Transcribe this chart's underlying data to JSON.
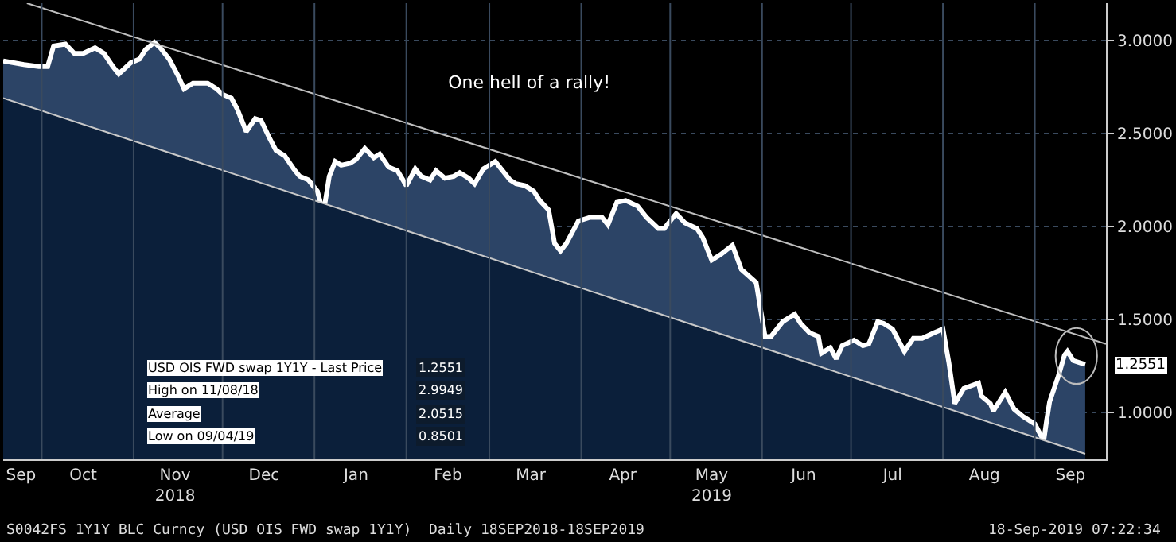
{
  "chart_data": {
    "type": "area",
    "title": "One hell of a rally!",
    "x": [
      "2018-09-18",
      "2018-09-25",
      "2018-09-30",
      "2018-10-03",
      "2018-10-05",
      "2018-10-09",
      "2018-10-12",
      "2018-10-15",
      "2018-10-19",
      "2018-10-22",
      "2018-10-25",
      "2018-10-27",
      "2018-10-31",
      "2018-11-03",
      "2018-11-05",
      "2018-11-08",
      "2018-11-10",
      "2018-11-13",
      "2018-11-16",
      "2018-11-18",
      "2018-11-21",
      "2018-11-26",
      "2018-11-29",
      "2018-12-01",
      "2018-12-04",
      "2018-12-06",
      "2018-12-09",
      "2018-12-12",
      "2018-12-14",
      "2018-12-17",
      "2018-12-19",
      "2018-12-22",
      "2018-12-25",
      "2018-12-27",
      "2018-12-30",
      "2019-01-02",
      "2019-01-04",
      "2019-01-06",
      "2019-01-08",
      "2019-01-10",
      "2019-01-13",
      "2019-01-15",
      "2019-01-18",
      "2019-01-21",
      "2019-01-23",
      "2019-01-26",
      "2019-01-29",
      "2019-02-01",
      "2019-02-04",
      "2019-02-06",
      "2019-02-09",
      "2019-02-11",
      "2019-02-14",
      "2019-02-17",
      "2019-02-19",
      "2019-02-22",
      "2019-02-24",
      "2019-02-27",
      "2019-03-03",
      "2019-03-05",
      "2019-03-08",
      "2019-03-10",
      "2019-03-13",
      "2019-03-16",
      "2019-03-18",
      "2019-03-21",
      "2019-03-23",
      "2019-03-25",
      "2019-03-27",
      "2019-03-31",
      "2019-04-04",
      "2019-04-08",
      "2019-04-10",
      "2019-04-13",
      "2019-04-16",
      "2019-04-20",
      "2019-04-23",
      "2019-04-27",
      "2019-04-29",
      "2019-05-03",
      "2019-05-06",
      "2019-05-10",
      "2019-05-12",
      "2019-05-15",
      "2019-05-18",
      "2019-05-22",
      "2019-05-25",
      "2019-05-30",
      "2019-06-02",
      "2019-06-04",
      "2019-06-08",
      "2019-06-12",
      "2019-06-14",
      "2019-06-17",
      "2019-06-20",
      "2019-06-21",
      "2019-06-24",
      "2019-06-26",
      "2019-06-28",
      "2019-07-02",
      "2019-07-05",
      "2019-07-07",
      "2019-07-10",
      "2019-07-12",
      "2019-07-15",
      "2019-07-19",
      "2019-07-22",
      "2019-07-25",
      "2019-07-29",
      "2019-08-01",
      "2019-08-03",
      "2019-08-05",
      "2019-08-08",
      "2019-08-13",
      "2019-08-14",
      "2019-08-17",
      "2019-08-18",
      "2019-08-22",
      "2019-08-25",
      "2019-08-28",
      "2019-09-01",
      "2019-09-04",
      "2019-09-05",
      "2019-09-06",
      "2019-09-09",
      "2019-09-11",
      "2019-09-12",
      "2019-09-14",
      "2019-09-18"
    ],
    "series": [
      {
        "color": "#2c4466",
        "values": [
          2.89,
          2.87,
          2.86,
          2.86,
          2.97,
          2.98,
          2.93,
          2.93,
          2.96,
          2.93,
          2.86,
          2.82,
          2.88,
          2.9,
          2.95,
          2.99,
          2.96,
          2.9,
          2.81,
          2.74,
          2.77,
          2.77,
          2.74,
          2.71,
          2.69,
          2.63,
          2.51,
          2.58,
          2.57,
          2.47,
          2.41,
          2.38,
          2.31,
          2.27,
          2.25,
          2.19,
          2.07,
          2.27,
          2.35,
          2.33,
          2.34,
          2.36,
          2.42,
          2.37,
          2.39,
          2.32,
          2.3,
          2.22,
          2.31,
          2.27,
          2.25,
          2.3,
          2.26,
          2.27,
          2.29,
          2.26,
          2.23,
          2.31,
          2.35,
          2.31,
          2.25,
          2.23,
          2.22,
          2.19,
          2.14,
          2.09,
          1.91,
          1.87,
          1.91,
          2.03,
          2.05,
          2.05,
          2.01,
          2.13,
          2.14,
          2.11,
          2.05,
          1.99,
          1.99,
          2.07,
          2.02,
          1.99,
          1.94,
          1.82,
          1.85,
          1.9,
          1.77,
          1.7,
          1.41,
          1.41,
          1.49,
          1.53,
          1.48,
          1.43,
          1.41,
          1.32,
          1.35,
          1.29,
          1.36,
          1.39,
          1.36,
          1.37,
          1.49,
          1.48,
          1.45,
          1.33,
          1.4,
          1.4,
          1.43,
          1.45,
          1.27,
          1.05,
          1.13,
          1.16,
          1.09,
          1.05,
          1.01,
          1.11,
          1.02,
          0.98,
          0.94,
          0.85,
          0.96,
          1.06,
          1.2,
          1.31,
          1.33,
          1.28,
          1.26
        ]
      },
      {
        "type": "area",
        "color": "#0b1f3a",
        "x": [
          "2018-09-18",
          "2019-09-18"
        ],
        "values": [
          2.69,
          0.78
        ]
      },
      {
        "type": "line",
        "color": "#bfbfbf",
        "x": [
          "2018-09-26",
          "2019-09-25"
        ],
        "values": [
          3.2,
          1.37
        ]
      }
    ],
    "xlim": [
      "2018-09-18",
      "2019-09-25"
    ],
    "xticks": [
      {
        "value": "2018-09-24",
        "label": "Sep"
      },
      {
        "value": "2018-10-15",
        "label": "Oct"
      },
      {
        "value": "2018-11-15",
        "label": "Nov\n2018"
      },
      {
        "value": "2018-12-15",
        "label": "Dec"
      },
      {
        "value": "2019-01-15",
        "label": "Jan"
      },
      {
        "value": "2019-02-15",
        "label": "Feb"
      },
      {
        "value": "2019-03-15",
        "label": "Mar"
      },
      {
        "value": "2019-04-15",
        "label": "Apr"
      },
      {
        "value": "2019-05-15",
        "label": "May\n2019"
      },
      {
        "value": "2019-06-15",
        "label": "Jun"
      },
      {
        "value": "2019-07-15",
        "label": "Jul"
      },
      {
        "value": "2019-08-15",
        "label": "Aug"
      },
      {
        "value": "2019-09-13",
        "label": "Sep"
      },
      {
        "value": "2018-10-01",
        "label": null
      },
      {
        "value": "2018-11-01",
        "label": null
      },
      {
        "value": "2018-12-01",
        "label": null
      },
      {
        "value": "2019-01-01",
        "label": null
      },
      {
        "value": "2019-02-01",
        "label": null
      },
      {
        "value": "2019-03-01",
        "label": null
      },
      {
        "value": "2019-04-01",
        "label": null
      },
      {
        "value": "2019-05-01",
        "label": null
      },
      {
        "value": "2019-06-01",
        "label": null
      },
      {
        "value": "2019-07-01",
        "label": null
      },
      {
        "value": "2019-08-01",
        "label": null
      },
      {
        "value": "2019-09-01",
        "label": null
      }
    ],
    "ylim": [
      0.75,
      3.2
    ],
    "yticks": [
      {
        "value": 1.0,
        "label": "1.0000"
      },
      {
        "value": 1.5,
        "label": "1.5000"
      },
      {
        "value": 2.0,
        "label": "2.0000"
      },
      {
        "value": 2.5,
        "label": "2.5000"
      },
      {
        "value": 3.0,
        "label": "3.0000"
      }
    ],
    "grid": true,
    "annotations": [
      "S0042FS 1Y1Y BLC Curncy (USD OIS FWD swap 1Y1Y)  Daily 18SEP2018-18SEP2019",
      "18-Sep-2019 07:22:34",
      "USD OIS FWD swap 1Y1Y - Last Price",
      "1.2551",
      "High on 11/08/18",
      "2.9949",
      "Average",
      "2.0515",
      "Low on 09/04/19",
      "0.8501",
      {
        "text": "1.2551",
        "x": "2019-09-18",
        "y": 1.2551
      }
    ]
  }
}
